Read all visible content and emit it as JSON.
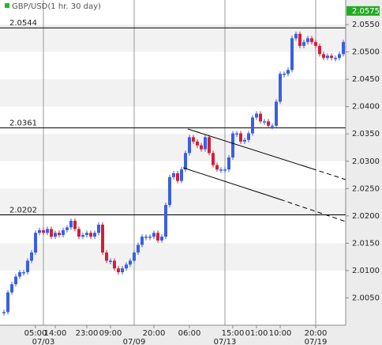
{
  "chart_data": {
    "type": "candlestick",
    "title": "GBP/USD(1 hr. 30 day)",
    "legend_color": "#22bb22",
    "up_color": "#3a5fe0",
    "down_color": "#d0203a",
    "values": [
      2.0024,
      2.006,
      2.0075,
      2.0089,
      2.0097,
      2.0097,
      2.0118,
      2.0133,
      2.0169,
      2.0174,
      2.0169,
      2.0176,
      2.0162,
      2.0169,
      2.0165,
      2.0174,
      2.0179,
      2.0191,
      2.0176,
      2.0162,
      2.0165,
      2.0169,
      2.0162,
      2.0169,
      2.0184,
      2.0133,
      2.0118,
      2.0118,
      2.0104,
      2.0097,
      2.0104,
      2.0111,
      2.0118,
      2.0133,
      2.0147,
      2.0162,
      2.0162,
      2.0162,
      2.0169,
      2.0155,
      2.0162,
      2.022,
      2.0271,
      2.0278,
      2.0264,
      2.0285,
      2.0315,
      2.0344,
      2.0336,
      2.0329,
      2.0322,
      2.0344,
      2.0315,
      2.0293,
      2.0285,
      2.0285,
      2.0285,
      2.0307,
      2.0351,
      2.0351,
      2.0336,
      2.0339,
      2.0351,
      2.038,
      2.0387,
      2.0373,
      2.0373,
      2.0365,
      2.0365,
      2.0409,
      2.046,
      2.046,
      2.0467,
      2.0525,
      2.0533,
      2.0511,
      2.0518,
      2.0525,
      2.0518,
      2.0511,
      2.0496,
      2.0489,
      2.0493,
      2.0489,
      2.0489,
      2.0496,
      2.0518
    ],
    "last_price": {
      "value": 2.0575,
      "color": "#22aa22"
    },
    "reference_lines": [
      2.0544,
      2.0361,
      2.0202
    ],
    "ylim": [
      2.0,
      2.0595
    ],
    "yticks": [
      {
        "value": 2.055,
        "label": "2.0550"
      },
      {
        "value": 2.05,
        "label": "2.0500"
      },
      {
        "value": 2.045,
        "label": "2.0450"
      },
      {
        "value": 2.04,
        "label": "2.0400"
      },
      {
        "value": 2.035,
        "label": "2.0350"
      },
      {
        "value": 2.03,
        "label": "2.0300"
      },
      {
        "value": 2.025,
        "label": "2.0250"
      },
      {
        "value": 2.02,
        "label": "2.0200"
      },
      {
        "value": 2.015,
        "label": "2.0150"
      },
      {
        "value": 2.01,
        "label": "2.0100"
      },
      {
        "value": 2.005,
        "label": "2.0050"
      }
    ],
    "xlim": [
      -1,
      86.6
    ],
    "xticks": [
      {
        "value": 8,
        "label": "05:00"
      },
      {
        "value": 13,
        "label": "14:00"
      },
      {
        "value": 21,
        "label": "23:00"
      },
      {
        "value": 27,
        "label": "09:00"
      },
      {
        "value": 38,
        "label": "20:00"
      },
      {
        "value": 47,
        "label": "06:00"
      },
      {
        "value": 58,
        "label": "15:00"
      },
      {
        "value": 64,
        "label": "01:00"
      },
      {
        "value": 70,
        "label": "10:00"
      },
      {
        "value": 79,
        "label": "20:00"
      }
    ],
    "date_ticks": [
      {
        "value": 10,
        "label": "07/03"
      },
      {
        "value": 33,
        "label": "07/09"
      },
      {
        "value": 56,
        "label": "07/13"
      },
      {
        "value": 79,
        "label": "07/19"
      }
    ]
  }
}
